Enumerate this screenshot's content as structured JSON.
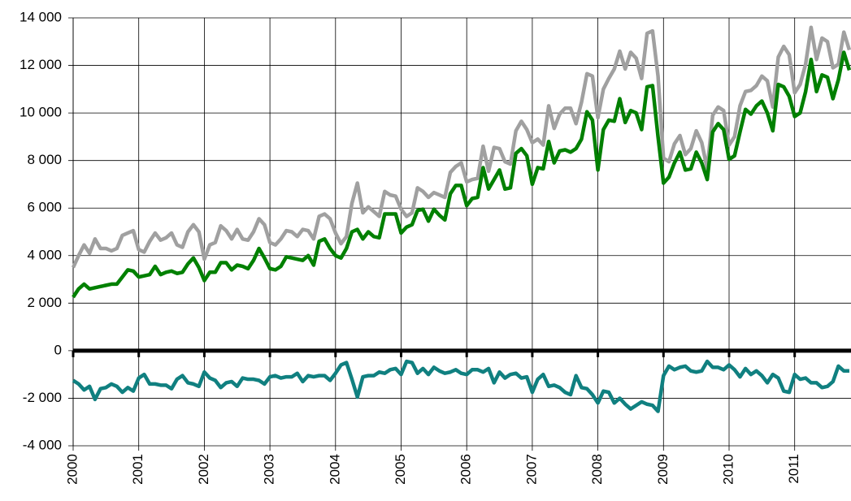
{
  "chart_data": {
    "type": "line",
    "categories": [
      "2000",
      null,
      null,
      null,
      null,
      null,
      null,
      null,
      null,
      null,
      null,
      null,
      "2001",
      null,
      null,
      null,
      null,
      null,
      null,
      null,
      null,
      null,
      null,
      null,
      "2002",
      null,
      null,
      null,
      null,
      null,
      null,
      null,
      null,
      null,
      null,
      null,
      "2003",
      null,
      null,
      null,
      null,
      null,
      null,
      null,
      null,
      null,
      null,
      null,
      "2004",
      null,
      null,
      null,
      null,
      null,
      null,
      null,
      null,
      null,
      null,
      null,
      "2005",
      null,
      null,
      null,
      null,
      null,
      null,
      null,
      null,
      null,
      null,
      null,
      "2006",
      null,
      null,
      null,
      null,
      null,
      null,
      null,
      null,
      null,
      null,
      null,
      "2007",
      null,
      null,
      null,
      null,
      null,
      null,
      null,
      null,
      null,
      null,
      null,
      "2008",
      null,
      null,
      null,
      null,
      null,
      null,
      null,
      null,
      null,
      null,
      null,
      "2009",
      null,
      null,
      null,
      null,
      null,
      null,
      null,
      null,
      null,
      null,
      null,
      "2010",
      null,
      null,
      null,
      null,
      null,
      null,
      null,
      null,
      null,
      null,
      null,
      "2011",
      null,
      null,
      null,
      null,
      null,
      null,
      null,
      null,
      null,
      null
    ],
    "series": [
      {
        "color": "#a0a0a0",
        "values": [
          3500,
          4000,
          4450,
          4100,
          4700,
          4300,
          4300,
          4200,
          4300,
          4850,
          4950,
          5050,
          4250,
          4150,
          4600,
          4950,
          4650,
          4750,
          4950,
          4450,
          4350,
          5000,
          5300,
          5000,
          3850,
          4450,
          4550,
          5250,
          5050,
          4700,
          5100,
          4700,
          4650,
          5000,
          5550,
          5300,
          4550,
          4450,
          4700,
          5050,
          5000,
          4800,
          5100,
          5050,
          4700,
          5650,
          5750,
          5550,
          4950,
          4500,
          4800,
          6200,
          7050,
          5800,
          6050,
          5850,
          5650,
          6700,
          6550,
          6500,
          5950,
          5650,
          5800,
          6850,
          6700,
          6450,
          6650,
          6550,
          6450,
          7500,
          7750,
          7900,
          7100,
          7200,
          7250,
          8600,
          7550,
          8550,
          8500,
          7950,
          7850,
          9250,
          9650,
          9300,
          8750,
          8900,
          8650,
          10300,
          9350,
          9950,
          10200,
          10200,
          9550,
          10450,
          11650,
          11550,
          9800,
          11000,
          11450,
          11850,
          12600,
          11850,
          12550,
          12300,
          11450,
          13350,
          13450,
          11550,
          8100,
          7950,
          8700,
          9050,
          8250,
          8500,
          9250,
          8750,
          7650,
          9900,
          10250,
          10100,
          8650,
          9000,
          10300,
          10900,
          10950,
          11150,
          11550,
          11350,
          10250,
          12350,
          12800,
          12450,
          10850,
          11200,
          12050,
          13600,
          12250,
          13150,
          13000,
          11900,
          12050,
          13400,
          12650
        ]
      },
      {
        "color": "#008000",
        "values": [
          2250,
          2600,
          2800,
          2600,
          2650,
          2700,
          2750,
          2800,
          2800,
          3100,
          3400,
          3350,
          3100,
          3150,
          3200,
          3550,
          3200,
          3300,
          3350,
          3250,
          3300,
          3650,
          3900,
          3500,
          2950,
          3300,
          3300,
          3700,
          3700,
          3400,
          3600,
          3550,
          3450,
          3800,
          4300,
          3900,
          3450,
          3400,
          3550,
          3950,
          3900,
          3850,
          3800,
          4000,
          3600,
          4600,
          4700,
          4300,
          4000,
          3900,
          4300,
          5000,
          5100,
          4700,
          5000,
          4800,
          4750,
          5750,
          5750,
          5750,
          4950,
          5200,
          5300,
          5900,
          5950,
          5450,
          5950,
          5700,
          5500,
          6600,
          6950,
          6950,
          6100,
          6400,
          6450,
          7700,
          6800,
          7200,
          7600,
          6800,
          6850,
          8300,
          8500,
          8200,
          7000,
          7700,
          7650,
          8800,
          7900,
          8400,
          8450,
          8350,
          8500,
          8900,
          10050,
          9700,
          7600,
          9300,
          9700,
          9650,
          10600,
          9600,
          10100,
          10000,
          9300,
          11100,
          11150,
          9000,
          7050,
          7300,
          7900,
          8350,
          7600,
          7650,
          8350,
          7900,
          7200,
          9200,
          9550,
          9300,
          8050,
          8200,
          9200,
          10150,
          9950,
          10300,
          10500,
          10000,
          9250,
          11200,
          11100,
          10700,
          9850,
          10000,
          10900,
          12250,
          10900,
          11600,
          11500,
          10600,
          11400,
          12550,
          11800
        ]
      },
      {
        "color": "#108080",
        "values": [
          -1250,
          -1400,
          -1650,
          -1500,
          -2050,
          -1600,
          -1550,
          -1400,
          -1500,
          -1750,
          -1550,
          -1700,
          -1150,
          -1000,
          -1400,
          -1400,
          -1450,
          -1450,
          -1600,
          -1200,
          -1050,
          -1350,
          -1400,
          -1500,
          -900,
          -1150,
          -1250,
          -1550,
          -1350,
          -1300,
          -1500,
          -1150,
          -1200,
          -1200,
          -1250,
          -1400,
          -1100,
          -1050,
          -1150,
          -1100,
          -1100,
          -950,
          -1300,
          -1050,
          -1100,
          -1050,
          -1050,
          -1250,
          -950,
          -600,
          -500,
          -1200,
          -1950,
          -1100,
          -1050,
          -1050,
          -900,
          -950,
          -800,
          -750,
          -1000,
          -450,
          -500,
          -950,
          -750,
          -1000,
          -700,
          -850,
          -950,
          -900,
          -800,
          -950,
          -1000,
          -800,
          -800,
          -900,
          -750,
          -1350,
          -900,
          -1150,
          -1000,
          -950,
          -1150,
          -1100,
          -1750,
          -1200,
          -1000,
          -1500,
          -1450,
          -1550,
          -1750,
          -1850,
          -1050,
          -1550,
          -1600,
          -1850,
          -2200,
          -1700,
          -1750,
          -2200,
          -2000,
          -2250,
          -2450,
          -2300,
          -2150,
          -2250,
          -2300,
          -2550,
          -1050,
          -650,
          -800,
          -700,
          -650,
          -850,
          -900,
          -850,
          -450,
          -700,
          -700,
          -800,
          -600,
          -800,
          -1100,
          -750,
          -1000,
          -850,
          -1050,
          -1350,
          -1000,
          -1150,
          -1700,
          -1750,
          -1000,
          -1200,
          -1150,
          -1350,
          -1350,
          -1550,
          -1500,
          -1300,
          -650,
          -850,
          -850
        ]
      }
    ],
    "ylim": [
      -4000,
      14000
    ],
    "yticks": [
      {
        "value": -4000,
        "label": "-4 000"
      },
      {
        "value": -2000,
        "label": "-2 000"
      },
      0,
      {
        "value": 2000,
        "label": "2 000"
      },
      {
        "value": 4000,
        "label": "4 000"
      },
      {
        "value": 6000,
        "label": "6 000"
      },
      {
        "value": 8000,
        "label": "8 000"
      },
      {
        "value": 10000,
        "label": "10 000"
      },
      {
        "value": 12000,
        "label": "12 000"
      },
      {
        "value": 14000,
        "label": "14 000"
      }
    ],
    "grid": true
  }
}
